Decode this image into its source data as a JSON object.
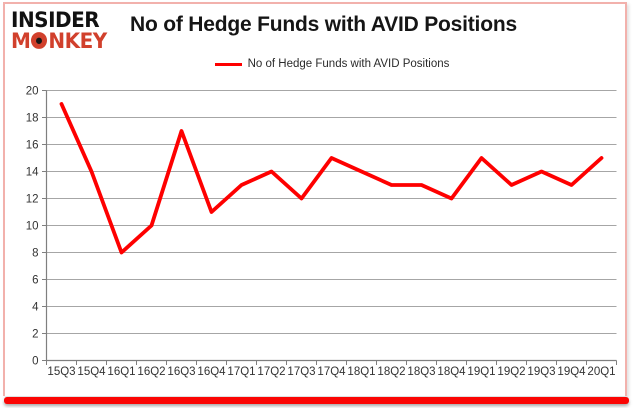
{
  "logo": {
    "line1": "INSIDER",
    "monkey_m": "M",
    "monkey_nkey": "NKEY",
    "brand_red": "#d1402c"
  },
  "chart_data": {
    "type": "line",
    "title": "No of Hedge Funds with AVID Positions",
    "legend": [
      "No of Hedge Funds with AVID Positions"
    ],
    "legend_position": "top-center",
    "categories": [
      "15Q3",
      "15Q4",
      "16Q1",
      "16Q2",
      "16Q3",
      "16Q4",
      "17Q1",
      "17Q2",
      "17Q3",
      "17Q4",
      "18Q1",
      "18Q2",
      "18Q3",
      "18Q4",
      "19Q1",
      "19Q2",
      "19Q3",
      "19Q4",
      "20Q1"
    ],
    "series": [
      {
        "name": "No of Hedge Funds with AVID Positions",
        "color": "#fe0000",
        "values": [
          19,
          14,
          8,
          10,
          17,
          11,
          13,
          14,
          12,
          15,
          14,
          13,
          13,
          12,
          15,
          13,
          14,
          13,
          15
        ]
      }
    ],
    "ylim": [
      0,
      20
    ],
    "yticks": [
      0,
      2,
      4,
      6,
      8,
      10,
      12,
      14,
      16,
      18,
      20
    ],
    "grid": true,
    "colors": {
      "gridline": "#a6a6a6",
      "axis": "#7f7f7f",
      "tick_label": "#333333",
      "accent_bar": "#fb0503",
      "frame_border": "#f2b1ac"
    }
  }
}
